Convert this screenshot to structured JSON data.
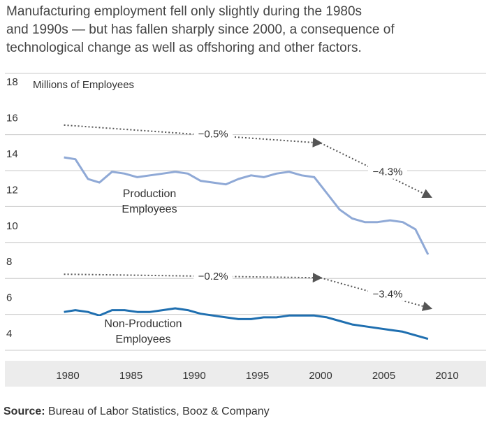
{
  "subtitle_lines": [
    "Manufacturing employment fell only slightly during the 1980s",
    "and 1990s — but has fallen sharply since 2000, a consequence of",
    "technological change as well as offshoring and other factors."
  ],
  "source": {
    "label": "Source:",
    "text": " Bureau of Labor Statistics, Booz & Company"
  },
  "colors": {
    "production": "#8fa9d6",
    "non_production": "#1f6fb0",
    "grid": "#c8c8c8",
    "axis_band": "#ececec",
    "trend": "#555555"
  },
  "chart_data": {
    "type": "line",
    "ylabel": "Millions of Employees",
    "ylim": [
      3.5,
      18
    ],
    "yticks": [
      4,
      6,
      8,
      10,
      12,
      14,
      16,
      18
    ],
    "xlim": [
      1979,
      2011
    ],
    "xticks": [
      1980,
      1985,
      1990,
      1995,
      2000,
      2005,
      2010
    ],
    "series": [
      {
        "name": "Production Employees",
        "label_lines": [
          "Production",
          "Employees"
        ],
        "x": [
          1979.7,
          1980.6,
          1981.6,
          1982.5,
          1983.5,
          1984.5,
          1985.5,
          1986.5,
          1987.5,
          1988.5,
          1989.5,
          1990.5,
          1991.5,
          1992.5,
          1993.5,
          1994.5,
          1995.5,
          1996.5,
          1997.5,
          1998.5,
          1999.5,
          2000.5,
          2001.5,
          2002.5,
          2003.5,
          2004.5,
          2005.5,
          2006.5,
          2007.5,
          2008.5
        ],
        "values": [
          13.8,
          13.7,
          12.6,
          12.4,
          13.0,
          12.9,
          12.7,
          12.8,
          12.9,
          13.0,
          12.9,
          12.5,
          12.4,
          12.3,
          12.6,
          12.8,
          12.7,
          12.9,
          13.0,
          12.8,
          12.7,
          11.8,
          10.9,
          10.4,
          10.2,
          10.2,
          10.3,
          10.2,
          9.8,
          8.4
        ]
      },
      {
        "name": "Non-Production Employees",
        "label_lines": [
          "Non-Production",
          "Employees"
        ],
        "x": [
          1979.7,
          1980.6,
          1981.6,
          1982.5,
          1983.5,
          1984.5,
          1985.5,
          1986.5,
          1987.5,
          1988.5,
          1989.5,
          1990.5,
          1991.5,
          1992.5,
          1993.5,
          1994.5,
          1995.5,
          1996.5,
          1997.5,
          1998.5,
          1999.5,
          2000.5,
          2001.5,
          2002.5,
          2003.5,
          2004.5,
          2005.5,
          2006.5,
          2007.5,
          2008.5
        ],
        "values": [
          5.2,
          5.3,
          5.2,
          5.0,
          5.3,
          5.3,
          5.2,
          5.2,
          5.3,
          5.4,
          5.3,
          5.1,
          5.0,
          4.9,
          4.8,
          4.8,
          4.9,
          4.9,
          5.0,
          5.0,
          5.0,
          4.9,
          4.7,
          4.5,
          4.4,
          4.3,
          4.2,
          4.1,
          3.9,
          3.7
        ]
      }
    ],
    "annotations": [
      {
        "label": "−0.5%",
        "from": [
          1979.7,
          15.6
        ],
        "to": [
          2000,
          14.6
        ],
        "label_at": [
          1991.5,
          15.1
        ]
      },
      {
        "label": "−4.3%",
        "from": [
          2000,
          14.6
        ],
        "to": [
          2008.7,
          11.6
        ],
        "label_at": [
          2005.3,
          13.0
        ]
      },
      {
        "label": "−0.2%",
        "from": [
          1979.7,
          7.3
        ],
        "to": [
          2000,
          7.1
        ],
        "label_at": [
          1991.5,
          7.2
        ]
      },
      {
        "label": "−3.4%",
        "from": [
          2000,
          7.1
        ],
        "to": [
          2008.7,
          5.4
        ],
        "label_at": [
          2005.3,
          6.2
        ]
      }
    ]
  }
}
